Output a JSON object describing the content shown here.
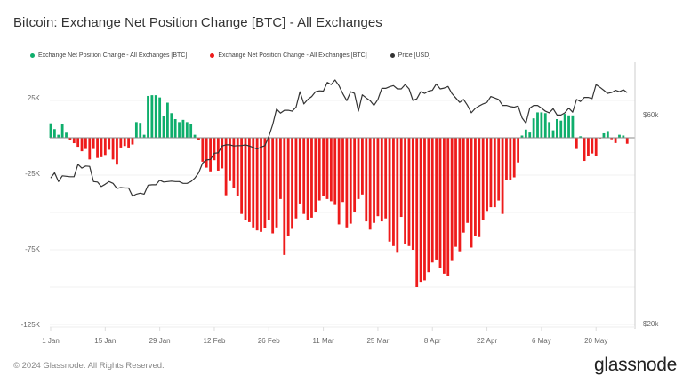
{
  "title": "Bitcoin: Exchange Net Position Change [BTC] - All Exchanges",
  "legend": [
    {
      "label": "Exchange Net Position Change - All Exchanges [BTC]",
      "color": "#0fae6c"
    },
    {
      "label": "Exchange Net Position Change - All Exchanges [BTC]",
      "color": "#ee1b1b"
    },
    {
      "label": "Price [USD]",
      "color": "#333333"
    }
  ],
  "footer": "© 2024 Glassnode. All Rights Reserved.",
  "logo": "glassnode",
  "chart_data": {
    "type": "bar+line",
    "title": "Bitcoin: Exchange Net Position Change [BTC] - All Exchanges",
    "x_range": [
      "1 Jan",
      "28 May"
    ],
    "x_frequency": "daily",
    "x_ticks": [
      "1 Jan",
      "15 Jan",
      "29 Jan",
      "12 Feb",
      "26 Feb",
      "11 Mar",
      "25 Mar",
      "8 Apr",
      "22 Apr",
      "6 May",
      "20 May"
    ],
    "y_left": {
      "ticks": [
        "25K",
        "-25K",
        "-75K",
        "-125K"
      ],
      "tick_values": [
        25000,
        -25000,
        -75000,
        -125000
      ],
      "range": [
        -125000,
        50000
      ],
      "grid": true
    },
    "y_right": {
      "ticks": [
        "$60k",
        "$20k"
      ],
      "tick_values": [
        60000,
        20000
      ],
      "scale": "log"
    },
    "legend_position": "top-left",
    "series": [
      {
        "name": "Exchange Net Position Change - All Exchanges [BTC]",
        "type": "bar",
        "axis": "left",
        "positive_color": "#0fae6c",
        "negative_color": "#ee1b1b",
        "values": [
          9700,
          5800,
          2000,
          9000,
          3400,
          -1500,
          -3600,
          -6000,
          -9000,
          -7500,
          -14500,
          -7500,
          -13500,
          -13000,
          -11500,
          -8000,
          -14500,
          -18000,
          -6500,
          -5500,
          -6500,
          -4500,
          10500,
          10000,
          2000,
          28000,
          28500,
          28500,
          27000,
          14500,
          23500,
          16500,
          12500,
          10500,
          12000,
          10500,
          9500,
          2000,
          -1500,
          -16000,
          -20000,
          -22500,
          -15000,
          -22000,
          -20500,
          -38500,
          -29000,
          -33500,
          -39000,
          -51000,
          -55000,
          -56500,
          -60000,
          -62000,
          -63000,
          -60500,
          -55000,
          -64000,
          -60000,
          -41000,
          -78500,
          -66000,
          -61000,
          -54000,
          -44000,
          -51000,
          -55000,
          -53500,
          -50000,
          -42000,
          -39000,
          -41000,
          -42500,
          -45000,
          -58000,
          -43000,
          -60000,
          -57500,
          -50000,
          -41000,
          -38000,
          -56000,
          -61500,
          -57000,
          -52500,
          -56000,
          -54000,
          -69500,
          -72500,
          -77000,
          -53000,
          -71000,
          -72500,
          -75000,
          -100000,
          -96500,
          -95500,
          -90000,
          -83500,
          -81500,
          -87500,
          -91000,
          -92500,
          -82500,
          -73000,
          -76000,
          -63500,
          -57000,
          -73500,
          -66000,
          -66500,
          -55000,
          -49000,
          -46500,
          -46500,
          -42000,
          -51000,
          -28000,
          -28000,
          -26500,
          -16500,
          1500,
          5500,
          3500,
          13000,
          17000,
          17000,
          16500,
          10500,
          5000,
          12500,
          11500,
          16000,
          15000,
          15000,
          -7500,
          1000,
          -15500,
          -12000,
          -10500,
          -12500,
          -500,
          3000,
          4500,
          -1000,
          -3500,
          2000,
          1500,
          -4000
        ]
      },
      {
        "name": "Price [USD]",
        "type": "line",
        "axis": "right",
        "color": "#333333",
        "values": [
          43000,
          44200,
          42200,
          43500,
          43400,
          43300,
          43300,
          46200,
          45300,
          45800,
          45700,
          42200,
          42100,
          41100,
          41600,
          42200,
          41800,
          40700,
          40900,
          40800,
          40800,
          39100,
          39500,
          39700,
          39500,
          41400,
          41500,
          41500,
          42500,
          42100,
          42200,
          42300,
          42200,
          42200,
          41800,
          41800,
          42200,
          43000,
          44200,
          46500,
          47300,
          47400,
          49000,
          49100,
          50900,
          51200,
          51200,
          50900,
          51000,
          51000,
          51200,
          50900,
          50500,
          50100,
          50600,
          51000,
          53500,
          57000,
          61800,
          60500,
          61400,
          61400,
          61100,
          62400,
          67700,
          63500,
          65000,
          66000,
          67700,
          68000,
          67900,
          71100,
          70300,
          72000,
          69900,
          67000,
          64600,
          67700,
          67100,
          61100,
          66600,
          65500,
          64600,
          63000,
          65000,
          68900,
          68900,
          69500,
          69900,
          68700,
          68700,
          70300,
          68700,
          64700,
          65200,
          67700,
          67100,
          67900,
          68200,
          70500,
          68700,
          69000,
          69600,
          67100,
          65500,
          64000,
          65000,
          63000,
          60600,
          62000,
          62800,
          63500,
          64000,
          66000,
          65500,
          65000,
          63000,
          63000,
          62600,
          62400,
          62800,
          59000,
          57400,
          62100,
          63000,
          63000,
          62100,
          61100,
          60600,
          61900,
          59900,
          59900,
          60600,
          62100,
          60800,
          65000,
          64300,
          65700,
          65700,
          65300,
          70300,
          69300,
          68200,
          67100,
          67400,
          68200,
          67700,
          68400,
          67400
        ]
      }
    ]
  }
}
